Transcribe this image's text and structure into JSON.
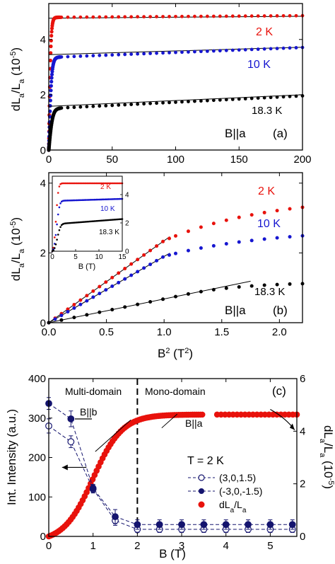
{
  "colors": {
    "red": "#e8120c",
    "blue": "#1616d0",
    "black": "#000000",
    "navy": "#14146e",
    "axis": "#000000"
  },
  "chart_data": [
    {
      "id": "a",
      "type": "scatter",
      "panel_label": "(a)",
      "annotation": "B||a",
      "xlim": [
        0,
        200
      ],
      "ylim": [
        0,
        5.3
      ],
      "xticks": [
        "0",
        "50",
        "100",
        "150",
        "200"
      ],
      "xtick_values": [
        0,
        50,
        100,
        150,
        200
      ],
      "yticks": [
        "0",
        "2",
        "4"
      ],
      "ytick_values": [
        0,
        2,
        4
      ],
      "ylabel_main": "dL",
      "ylabel_sub1": "a",
      "ylabel_slash": "/L",
      "ylabel_sub2": "a",
      "ylabel_unit": "(10",
      "ylabel_exp": "-5",
      "ylabel_close": ")",
      "series": [
        {
          "label": "2 K",
          "color": "red",
          "sat": 4.8,
          "k": 1.6,
          "slope": 0.0003,
          "fit": [
            4.77,
            4.84
          ]
        },
        {
          "label": "10 K",
          "color": "blue",
          "sat": 3.35,
          "k": 2.2,
          "slope": 0.0018,
          "fit": [
            3.45,
            3.72
          ]
        },
        {
          "label": "18.3 K",
          "color": "black",
          "sat": 1.5,
          "k": 3.0,
          "slope": 0.0023,
          "fit": [
            1.58,
            2.0
          ]
        }
      ]
    },
    {
      "id": "b",
      "type": "scatter",
      "panel_label": "(b)",
      "annotation": "B||a",
      "xlim": [
        0,
        2.2
      ],
      "ylim": [
        0,
        4.3
      ],
      "xticks": [
        "0.0",
        "0.5",
        "1.0",
        "1.5",
        "2.0"
      ],
      "xtick_values": [
        0,
        0.5,
        1.0,
        1.5,
        2.0
      ],
      "yticks": [
        "0",
        "2",
        "4"
      ],
      "ytick_values": [
        0,
        2,
        4
      ],
      "xlabel_main": "B",
      "xlabel_exp": "2",
      "xlabel_unit": " (T",
      "xlabel_exp2": "2",
      "xlabel_close": ")",
      "ylabel_main": "dL",
      "ylabel_sub1": "a",
      "ylabel_slash": "/L",
      "ylabel_sub2": "a",
      "ylabel_unit": "(10",
      "ylabel_exp": "-5",
      "ylabel_close": ")",
      "series": [
        {
          "label": "2 K",
          "color": "red",
          "slope": 2.35,
          "fit_x": [
            0,
            1.05
          ]
        },
        {
          "label": "10 K",
          "color": "blue",
          "slope": 1.9,
          "fit_x": [
            0,
            1.05
          ]
        },
        {
          "label": "18.3 K",
          "color": "black",
          "slope": 0.68,
          "fit_x": [
            0,
            1.75
          ]
        }
      ],
      "inset": {
        "xlim": [
          0,
          15
        ],
        "ylim": [
          0,
          5.3
        ],
        "xticks": [
          "0",
          "5",
          "10",
          "15"
        ],
        "xtick_values": [
          0,
          5,
          10,
          15
        ],
        "yticks": [
          "0",
          "2",
          "4"
        ],
        "ytick_values": [
          0,
          2,
          4
        ],
        "xlabel": "B (T)",
        "series_labels": [
          "2 K",
          "10 K",
          "18.3 K"
        ]
      }
    },
    {
      "id": "c",
      "type": "scatter",
      "panel_label": "(c)",
      "xlim": [
        0,
        5.6
      ],
      "ylim": [
        0,
        400
      ],
      "y2lim": [
        0,
        6
      ],
      "xticks": [
        "0",
        "1",
        "2",
        "3",
        "4",
        "5"
      ],
      "xtick_values": [
        0,
        1,
        2,
        3,
        4,
        5
      ],
      "yticks": [
        "0",
        "100",
        "200",
        "300",
        "400"
      ],
      "ytick_values": [
        0,
        100,
        200,
        300,
        400
      ],
      "y2ticks": [
        "0",
        "2",
        "4",
        "6"
      ],
      "y2tick_values": [
        0,
        2,
        4,
        6
      ],
      "xlabel": "B (T)",
      "ylabel": "Int. Intensity (a.u.)",
      "y2label_main": "dL",
      "y2label_sub1": "a",
      "y2label_slash": "/L",
      "y2label_sub2": "a",
      "y2label_unit": "(10",
      "y2label_exp": "-5",
      "y2label_close": ")",
      "region_labels": {
        "left": "Multi-domain",
        "right": "Mono-domain"
      },
      "direction_labels": {
        "b": "B||b",
        "a": "B||a"
      },
      "divider_x": 2,
      "legend_title": "T = 2 K",
      "legend": [
        "(3,0,1.5)",
        "(-3,0,-1.5)",
        "dL /L"
      ],
      "legend_sub": [
        "a",
        "a"
      ],
      "open_series": {
        "x": [
          0,
          0.5,
          1,
          1.5,
          2,
          2.5,
          3,
          3.5,
          4,
          4.5,
          5,
          5.5
        ],
        "y": [
          280,
          240,
          120,
          40,
          18,
          18,
          18,
          18,
          18,
          18,
          18,
          18
        ],
        "err": [
          18,
          15,
          10,
          12,
          8,
          8,
          8,
          8,
          8,
          8,
          8,
          8
        ]
      },
      "filled_series": {
        "x": [
          0,
          0.5,
          1,
          1.5,
          2,
          2.5,
          3,
          3.5,
          4,
          4.5,
          5,
          5.5
        ],
        "y": [
          337,
          298,
          122,
          50,
          30,
          30,
          30,
          30,
          30,
          30,
          30,
          30
        ],
        "err": [
          15,
          20,
          10,
          18,
          12,
          12,
          12,
          12,
          12,
          12,
          12,
          12
        ]
      },
      "dl_series": {
        "sat": 4.8,
        "mid": 1.0,
        "w": 0.33
      }
    }
  ]
}
